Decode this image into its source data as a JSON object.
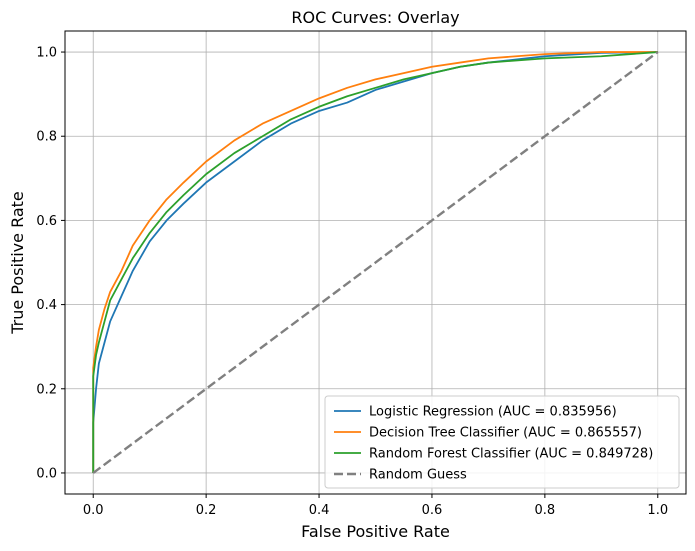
{
  "chart_data": {
    "type": "line",
    "title": "ROC Curves: Overlay",
    "xlabel": "False Positive Rate",
    "ylabel": "True Positive Rate",
    "xlim": [
      -0.05,
      1.05
    ],
    "ylim": [
      -0.05,
      1.05
    ],
    "xticks": [
      0.0,
      0.2,
      0.4,
      0.6,
      0.8,
      1.0
    ],
    "yticks": [
      0.0,
      0.2,
      0.4,
      0.6,
      0.8,
      1.0
    ],
    "xtick_labels": [
      "0.0",
      "0.2",
      "0.4",
      "0.6",
      "0.8",
      "1.0"
    ],
    "ytick_labels": [
      "0.0",
      "0.2",
      "0.4",
      "0.6",
      "0.8",
      "1.0"
    ],
    "grid": true,
    "legend_position": "lower-right",
    "series": [
      {
        "name": "Logistic Regression (AUC = 0.835956)",
        "color": "#1f77b4",
        "style": "solid",
        "x": [
          0,
          0,
          0.005,
          0.01,
          0.02,
          0.03,
          0.05,
          0.07,
          0.1,
          0.13,
          0.16,
          0.2,
          0.25,
          0.3,
          0.35,
          0.4,
          0.45,
          0.5,
          0.55,
          0.6,
          0.65,
          0.7,
          0.8,
          0.9,
          1.0
        ],
        "y": [
          0,
          0.12,
          0.2,
          0.26,
          0.31,
          0.36,
          0.42,
          0.48,
          0.55,
          0.6,
          0.64,
          0.69,
          0.74,
          0.79,
          0.83,
          0.86,
          0.88,
          0.91,
          0.93,
          0.95,
          0.965,
          0.975,
          0.99,
          0.998,
          1.0
        ]
      },
      {
        "name": "Decision Tree Classifier (AUC = 0.865557)",
        "color": "#ff7f0e",
        "style": "solid",
        "x": [
          0,
          0,
          0.005,
          0.01,
          0.02,
          0.03,
          0.05,
          0.07,
          0.1,
          0.13,
          0.16,
          0.2,
          0.25,
          0.3,
          0.35,
          0.4,
          0.45,
          0.5,
          0.55,
          0.6,
          0.65,
          0.7,
          0.8,
          0.9,
          1.0
        ],
        "y": [
          0,
          0.25,
          0.3,
          0.34,
          0.39,
          0.43,
          0.48,
          0.54,
          0.6,
          0.65,
          0.69,
          0.74,
          0.79,
          0.83,
          0.86,
          0.89,
          0.915,
          0.935,
          0.95,
          0.965,
          0.975,
          0.985,
          0.995,
          1.0,
          1.0
        ]
      },
      {
        "name": "Random Forest Classifier (AUC = 0.849728)",
        "color": "#2ca02c",
        "style": "solid",
        "x": [
          0,
          0,
          0.005,
          0.01,
          0.02,
          0.03,
          0.05,
          0.07,
          0.1,
          0.13,
          0.16,
          0.2,
          0.25,
          0.3,
          0.35,
          0.4,
          0.45,
          0.5,
          0.55,
          0.6,
          0.65,
          0.7,
          0.8,
          0.9,
          1.0
        ],
        "y": [
          0,
          0.23,
          0.28,
          0.31,
          0.36,
          0.41,
          0.46,
          0.51,
          0.57,
          0.62,
          0.66,
          0.71,
          0.76,
          0.8,
          0.84,
          0.87,
          0.895,
          0.915,
          0.935,
          0.95,
          0.965,
          0.975,
          0.985,
          0.99,
          1.0
        ]
      },
      {
        "name": "Random Guess",
        "color": "#808080",
        "style": "dashed",
        "x": [
          0,
          1
        ],
        "y": [
          0,
          1
        ]
      }
    ]
  }
}
